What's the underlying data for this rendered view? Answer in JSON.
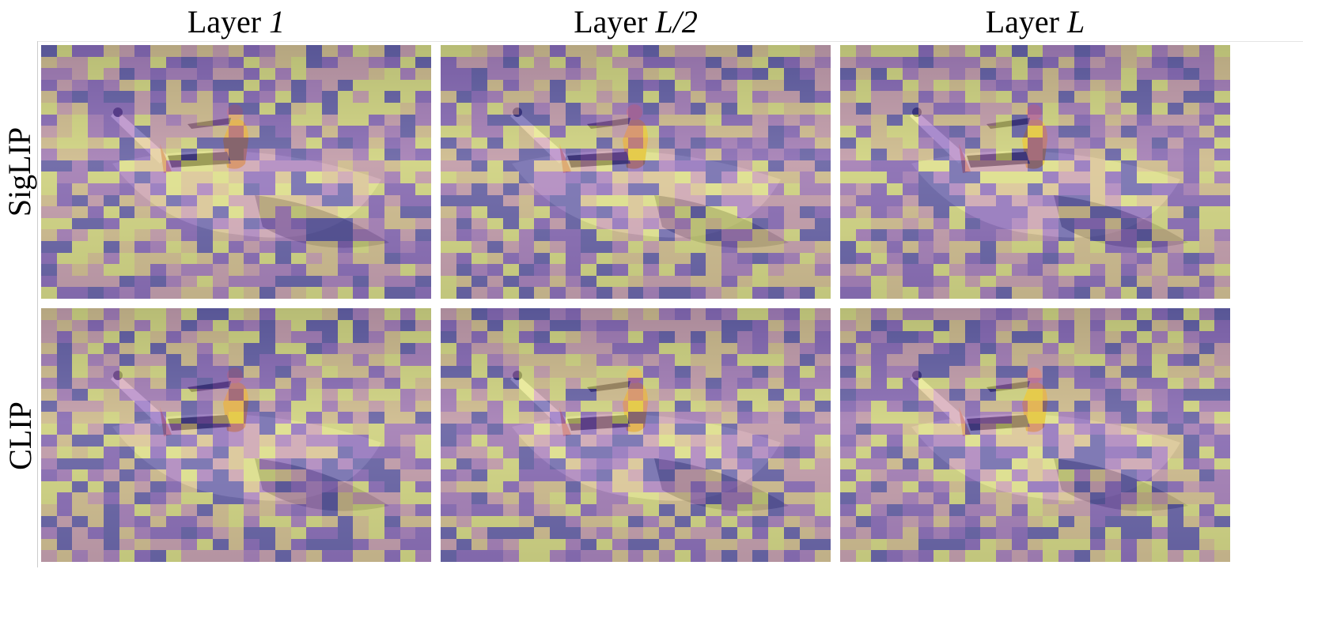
{
  "columns": [
    {
      "prefix": "Layer ",
      "layer": "1"
    },
    {
      "prefix": "Layer ",
      "layer": "L/2"
    },
    {
      "prefix": "Layer ",
      "layer": "L"
    }
  ],
  "rows": [
    {
      "label": "SigLIP"
    },
    {
      "label": "CLIP"
    }
  ],
  "colormap": [
    "#4b3fa0",
    "#7a4cb5",
    "#a368b8",
    "#cf93a6",
    "#e0c07c",
    "#e4e46a"
  ]
}
